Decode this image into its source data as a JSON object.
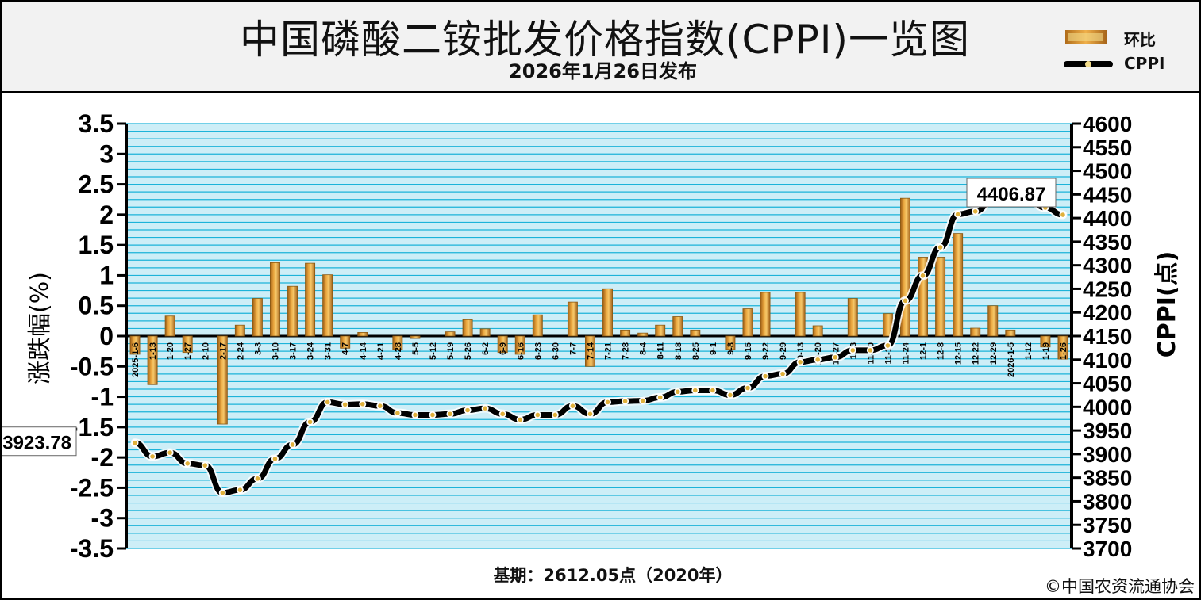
{
  "title": "中国磷酸二铵批发价格指数(CPPI)一览图",
  "subtitle": "2026年1月26日发布",
  "legend": {
    "bar_label": "环比",
    "line_label": "CPPI"
  },
  "footer": {
    "base_period": "基期：2612.05点（2020年）",
    "credit": "©中国农资流通协会"
  },
  "colors": {
    "bar": "#e8a23a",
    "bar_edge": "#8a5a14",
    "line": "#000000",
    "marker": "#f3dc8a",
    "plot_bg": "#cdeef7",
    "grid": "#1cb3d9"
  },
  "chart_data": {
    "type": "bar+line",
    "title": "中国磷酸二铵批发价格指数(CPPI)一览图",
    "y_left_label": "涨跌幅(%)",
    "y_right_label": "CPPI(点)",
    "y_left_lim": [
      -3.5,
      3.5
    ],
    "y_left_ticks": [
      "3.5",
      "3",
      "2.5",
      "2",
      "1.5",
      "1",
      "0.5",
      "0",
      "-0.5",
      "-1",
      "-1.5",
      "-2",
      "-2.5",
      "-3",
      "-3.5"
    ],
    "y_right_lim": [
      3700,
      4600
    ],
    "y_right_ticks": [
      "4600",
      "4550",
      "4500",
      "4450",
      "4400",
      "4350",
      "4300",
      "4250",
      "4200",
      "4150",
      "4100",
      "4050",
      "4000",
      "3950",
      "3900",
      "3850",
      "3800",
      "3750",
      "3700"
    ],
    "grid": true,
    "categories": [
      "2025-1-6",
      "1-13",
      "1-20",
      "1-27",
      "2-10",
      "2-17",
      "2-24",
      "3-3",
      "3-10",
      "3-17",
      "3-24",
      "3-31",
      "4-7",
      "4-14",
      "4-21",
      "4-28",
      "5-5",
      "5-12",
      "5-19",
      "5-26",
      "6-2",
      "6-9",
      "6-16",
      "6-23",
      "6-30",
      "7-7",
      "7-14",
      "7-21",
      "7-28",
      "8-4",
      "8-11",
      "8-18",
      "8-25",
      "9-1",
      "9-8",
      "9-15",
      "9-22",
      "9-29",
      "10-13",
      "10-20",
      "10-27",
      "11-3",
      "11-10",
      "11-17",
      "11-24",
      "12-1",
      "12-8",
      "12-15",
      "12-22",
      "12-29",
      "2026-1-5",
      "1-12",
      "1-19",
      "1-26"
    ],
    "series": [
      {
        "name": "环比",
        "type": "bar",
        "values": [
          -0.3,
          -0.8,
          0.33,
          -0.27,
          0.0,
          -1.45,
          0.18,
          0.62,
          1.21,
          0.82,
          1.2,
          1.01,
          -0.2,
          0.06,
          0.0,
          -0.22,
          -0.04,
          0.0,
          0.07,
          0.27,
          0.12,
          -0.27,
          -0.3,
          0.35,
          0.0,
          0.56,
          -0.5,
          0.78,
          0.1,
          0.05,
          0.18,
          0.32,
          0.1,
          0.0,
          -0.22,
          0.45,
          0.72,
          0.0,
          0.72,
          0.17,
          0.0,
          0.62,
          0.0,
          0.37,
          2.27,
          1.3,
          1.3,
          1.69,
          0.13,
          0.5,
          0.1,
          0.0,
          -0.18,
          -0.38
        ]
      },
      {
        "name": "CPPI",
        "type": "line",
        "values": [
          3923.78,
          3895,
          3903,
          3880,
          3876,
          3818,
          3824,
          3848,
          3890,
          3920,
          3968,
          4010,
          4005,
          4006,
          4002,
          3987,
          3983,
          3983,
          3985,
          3993,
          3997,
          3985,
          3973,
          3983,
          3983,
          4002,
          3985,
          4010,
          4012,
          4013,
          4020,
          4032,
          4035,
          4035,
          4025,
          4040,
          4065,
          4070,
          4095,
          4100,
          4105,
          4120,
          4120,
          4130,
          4225,
          4278,
          4338,
          4408,
          4414,
          4438,
          4440,
          4440,
          4422,
          4406.87
        ]
      }
    ],
    "annotations": [
      {
        "text": "3923.78",
        "series": "CPPI",
        "category": "2025-1-6"
      },
      {
        "text": "4406.87",
        "series": "CPPI",
        "category": "1-26"
      }
    ]
  }
}
